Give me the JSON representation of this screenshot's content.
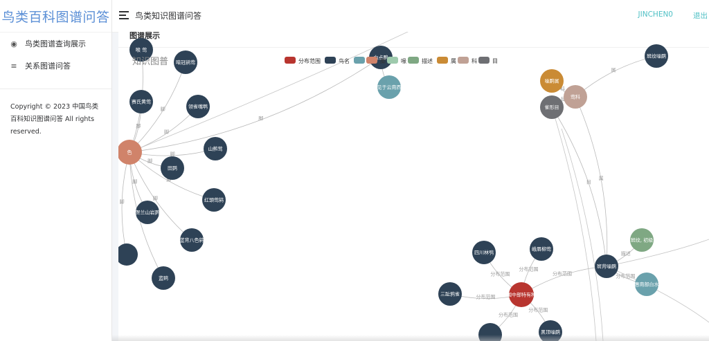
{
  "app": {
    "logo": "鸟类百科图谱问答"
  },
  "sidebar": {
    "items": [
      {
        "label": "鸟类图谱查询展示",
        "icon": "palette-icon"
      },
      {
        "label": "关系图谱问答",
        "icon": "list-icon"
      }
    ],
    "copyright": "Copyright © 2023 中国鸟类百科知识图谱问答 All rights reserved."
  },
  "header": {
    "title": "鸟类知识图谱问答",
    "user": "JINCHEN0",
    "logout": "退出"
  },
  "card": {
    "title": "图谱展示"
  },
  "graph": {
    "title": "知识图普",
    "legend": [
      {
        "name": "分布范围",
        "color": "#b8352f"
      },
      {
        "name": "鸟名",
        "color": "#2e4256"
      },
      {
        "name": "",
        "color": "#6aa1ac"
      },
      {
        "name": "脚",
        "color": "#d0836a"
      },
      {
        "name": "喙",
        "color": "#9ecaad"
      },
      {
        "name": "描述",
        "color": "#7fa883"
      },
      {
        "name": "属",
        "color": "#ca8b35"
      },
      {
        "name": "科",
        "color": "#c0a195"
      },
      {
        "name": "目",
        "color": "#6e6f73"
      }
    ],
    "nodes": [
      {
        "id": "n1",
        "label": "喉 莺",
        "cat": 1
      },
      {
        "id": "n2",
        "label": "暗冠鹟莺",
        "cat": 1
      },
      {
        "id": "n3",
        "label": "赛氏黄莺",
        "cat": 1
      },
      {
        "id": "n4",
        "label": "领雀嘴鹎",
        "cat": 1
      },
      {
        "id": "n5",
        "label": "色",
        "cat": 3
      },
      {
        "id": "n6",
        "label": "山鹡莺",
        "cat": 1
      },
      {
        "id": "n7",
        "label": "田鹨",
        "cat": 1
      },
      {
        "id": "n8",
        "label": "红頭莺鸫",
        "cat": 1
      },
      {
        "id": "n9",
        "label": "贺兰山岩鹨",
        "cat": 1
      },
      {
        "id": "n10",
        "label": "蓝背八色鸫",
        "cat": 1
      },
      {
        "id": "n11",
        "label": "",
        "cat": 1
      },
      {
        "id": "n12",
        "label": "蓝鹀",
        "cat": 1
      },
      {
        "id": "n13",
        "label": "白点鹛",
        "cat": 1
      },
      {
        "id": "n14",
        "label": "见于云南西",
        "cat": 2
      },
      {
        "id": "n15",
        "label": "噪鹛属",
        "cat": 6
      },
      {
        "id": "n16",
        "label": "莺科",
        "cat": 7
      },
      {
        "id": "n17",
        "label": "雀形目",
        "cat": 8
      },
      {
        "id": "n18",
        "label": "斑纹噪鹛",
        "cat": 1
      },
      {
        "id": "n19",
        "label": "四川林鸮",
        "cat": 1
      },
      {
        "id": "n20",
        "label": "峨眉柳莺",
        "cat": 1
      },
      {
        "id": "n21",
        "label": "斑背噪鹛",
        "cat": 1
      },
      {
        "id": "n22",
        "label": "斑纹, 初级",
        "cat": 5
      },
      {
        "id": "n23",
        "label": "国中部特有种",
        "cat": 0
      },
      {
        "id": "n24",
        "label": "三趾鸦雀",
        "cat": 1
      },
      {
        "id": "n25",
        "label": "惠南部白水",
        "cat": 2
      },
      {
        "id": "n26",
        "label": "",
        "cat": 1
      },
      {
        "id": "n27",
        "label": "黑顶噪鹛",
        "cat": 1
      }
    ],
    "edges": [
      {
        "s": "n5",
        "t": "n1",
        "label": "脚"
      },
      {
        "s": "n5",
        "t": "n2",
        "label": "脚"
      },
      {
        "s": "n5",
        "t": "n3",
        "label": "脚"
      },
      {
        "s": "n5",
        "t": "n4",
        "label": "脚"
      },
      {
        "s": "n5",
        "t": "n6",
        "label": "脚"
      },
      {
        "s": "n5",
        "t": "n7",
        "label": "脚"
      },
      {
        "s": "n5",
        "t": "n8",
        "label": "脚"
      },
      {
        "s": "n5",
        "t": "n9",
        "label": "脚"
      },
      {
        "s": "n5",
        "t": "n10",
        "label": "脚"
      },
      {
        "s": "n5",
        "t": "n11",
        "label": "脚"
      },
      {
        "s": "n5",
        "t": "n12",
        "label": "脚"
      },
      {
        "s": "n5",
        "t": "n13",
        "label": "脚"
      },
      {
        "s": "n13",
        "t": "n14",
        "label": ""
      },
      {
        "s": "n15",
        "t": "n16",
        "label": "科"
      },
      {
        "s": "n16",
        "t": "n17",
        "label": "目"
      },
      {
        "s": "n18",
        "t": "n16",
        "label": "属"
      },
      {
        "s": "n21",
        "t": "n16",
        "label": "属"
      },
      {
        "s": "n21",
        "t": "n17",
        "label": "目"
      },
      {
        "s": "n21",
        "t": "n22",
        "label": "描述"
      },
      {
        "s": "n21",
        "t": "n25",
        "label": "分布范围"
      },
      {
        "s": "n21",
        "t": "n23",
        "label": "分布范围"
      },
      {
        "s": "n19",
        "t": "n23",
        "label": "分布范围"
      },
      {
        "s": "n20",
        "t": "n23",
        "label": "分布范围"
      },
      {
        "s": "n24",
        "t": "n23",
        "label": "分布范围"
      },
      {
        "s": "n26",
        "t": "n23",
        "label": "分布范围"
      },
      {
        "s": "n27",
        "t": "n23",
        "label": "分布范围"
      }
    ]
  }
}
